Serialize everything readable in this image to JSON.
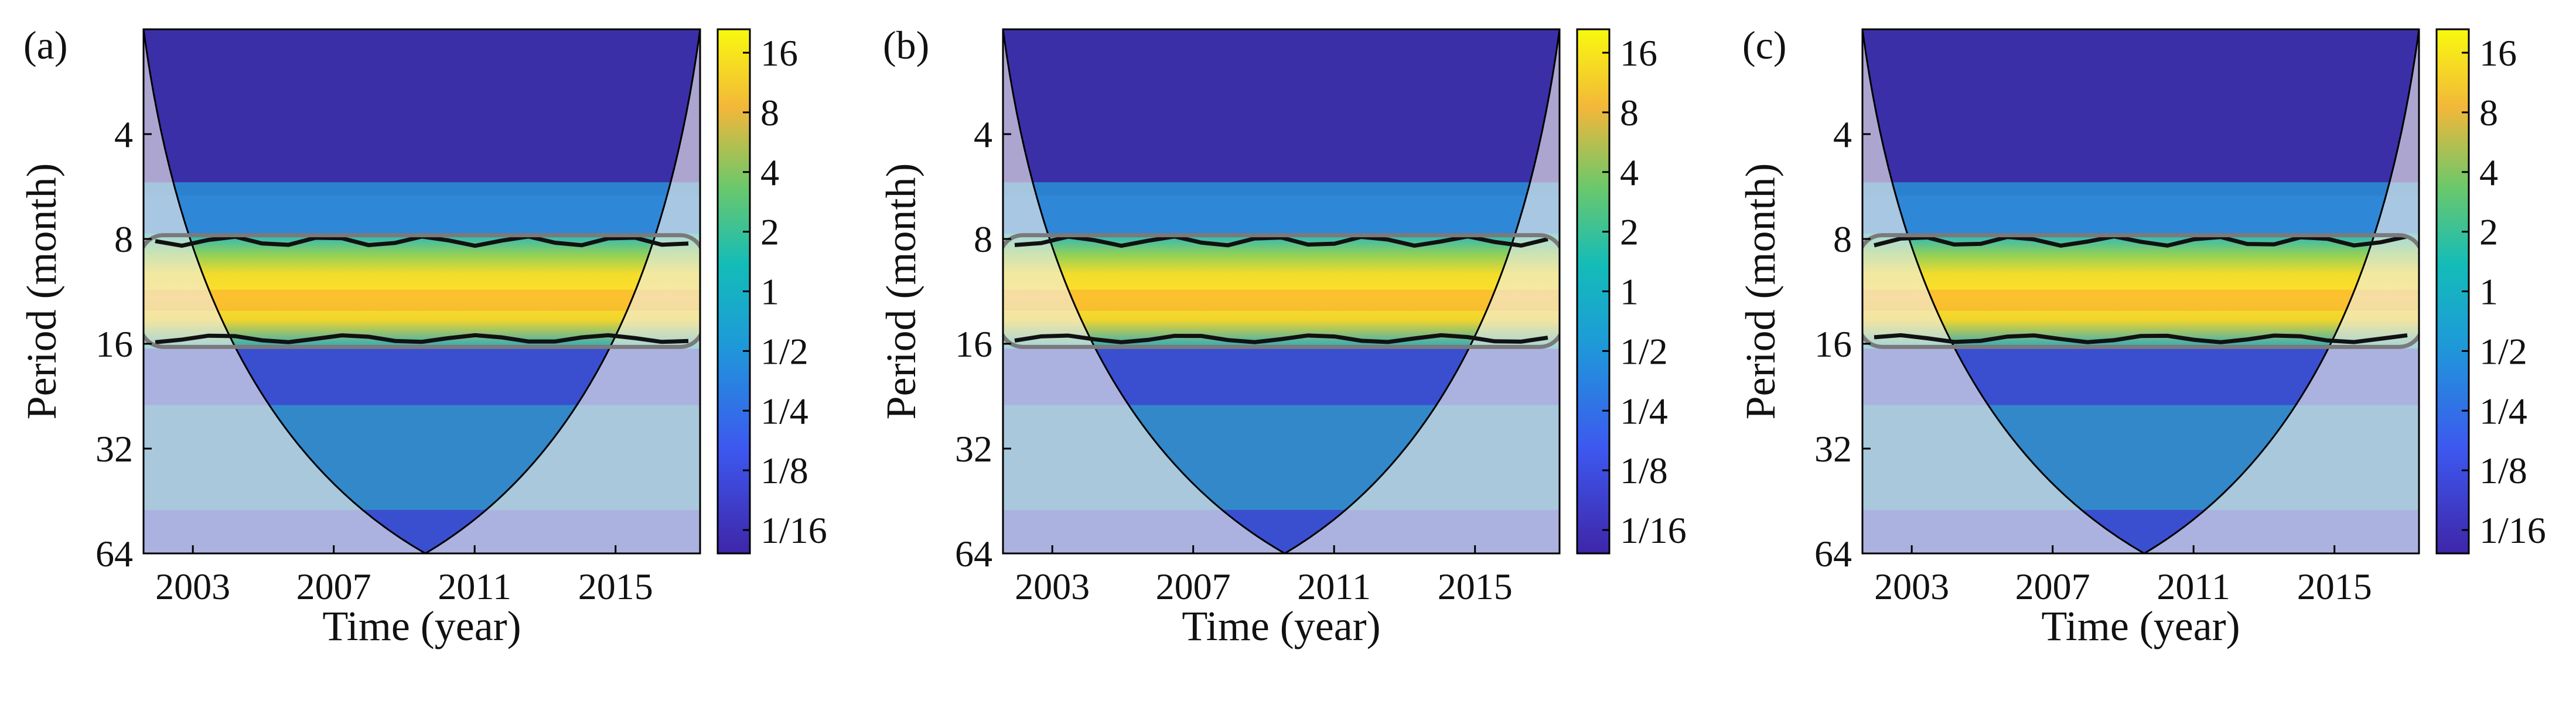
{
  "figure": {
    "colors": {
      "low": "#3b2fa8",
      "mid": "#2eb8c2",
      "high": "#ffe62b",
      "peak": "#f7a833",
      "contour": "#111111",
      "coi_fill": "#f2efe9",
      "cone_edge": "#000000",
      "gray_contour": "#7a7a7a"
    }
  },
  "chart_data": [
    {
      "type": "heatmap",
      "panel_label": "(a)",
      "xlabel": "Time (year)",
      "ylabel": "Period (month)",
      "x_ticks": [
        "2003",
        "2007",
        "2011",
        "2015"
      ],
      "x_tick_values": [
        2003,
        2007,
        2011,
        2015
      ],
      "xlim": [
        2001.6,
        2017.4
      ],
      "y_ticks": [
        "4",
        "8",
        "16",
        "32",
        "64"
      ],
      "y_tick_values": [
        4,
        8,
        16,
        32,
        64
      ],
      "ylim": [
        2,
        64
      ],
      "y_scale": "log2",
      "colorbar_ticks": [
        "16",
        "8",
        "4",
        "2",
        "1",
        "1/2",
        "1/4",
        "1/8",
        "1/16"
      ],
      "colorbar_range": [
        0.0625,
        16
      ],
      "dominant_band_period": [
        8.5,
        15
      ],
      "peak_period": 12,
      "cone_center_year": 2009.6
    },
    {
      "type": "heatmap",
      "panel_label": "(b)",
      "xlabel": "Time (year)",
      "ylabel": "Period (month)",
      "x_ticks": [
        "2003",
        "2007",
        "2011",
        "2015"
      ],
      "x_tick_values": [
        2003,
        2007,
        2011,
        2015
      ],
      "xlim": [
        2001.6,
        2017.4
      ],
      "y_ticks": [
        "4",
        "8",
        "16",
        "32",
        "64"
      ],
      "y_tick_values": [
        4,
        8,
        16,
        32,
        64
      ],
      "ylim": [
        2,
        64
      ],
      "y_scale": "log2",
      "colorbar_ticks": [
        "16",
        "8",
        "4",
        "2",
        "1",
        "1/2",
        "1/4",
        "1/8",
        "1/16"
      ],
      "colorbar_range": [
        0.0625,
        16
      ],
      "dominant_band_period": [
        8.5,
        15
      ],
      "peak_period": 12,
      "cone_center_year": 2009.6
    },
    {
      "type": "heatmap",
      "panel_label": "(c)",
      "xlabel": "Time (year)",
      "ylabel": "Period (month)",
      "x_ticks": [
        "2003",
        "2007",
        "2011",
        "2015"
      ],
      "x_tick_values": [
        2003,
        2007,
        2011,
        2015
      ],
      "xlim": [
        2001.6,
        2017.4
      ],
      "y_ticks": [
        "4",
        "8",
        "16",
        "32",
        "64"
      ],
      "y_tick_values": [
        4,
        8,
        16,
        32,
        64
      ],
      "ylim": [
        2,
        64
      ],
      "y_scale": "log2",
      "colorbar_ticks": [
        "16",
        "8",
        "4",
        "2",
        "1",
        "1/2",
        "1/4",
        "1/8",
        "1/16"
      ],
      "colorbar_range": [
        0.0625,
        16
      ],
      "dominant_band_period": [
        8.5,
        15
      ],
      "peak_period": 12,
      "cone_center_year": 2009.6
    }
  ]
}
